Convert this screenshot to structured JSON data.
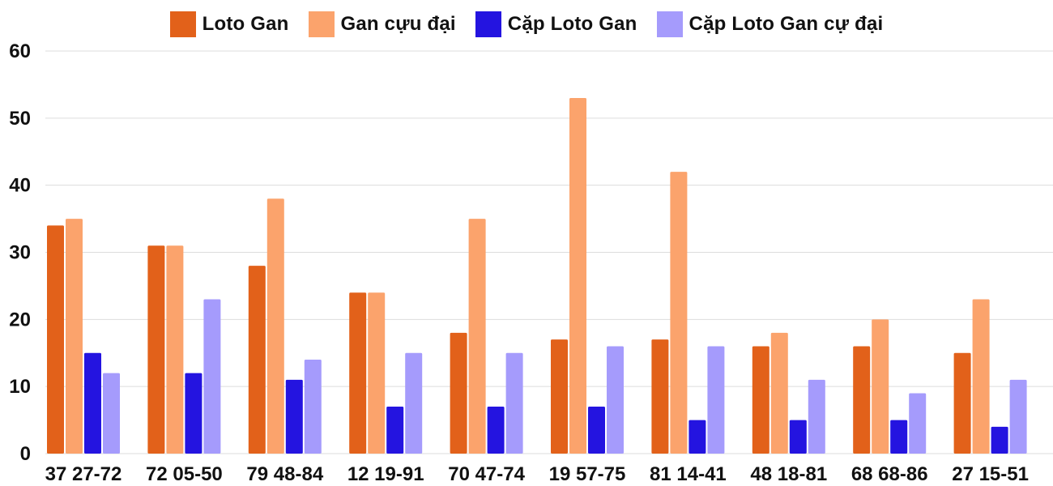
{
  "chart_data": {
    "type": "bar",
    "title": "",
    "xlabel": "",
    "ylabel": "",
    "ylim": [
      0,
      60
    ],
    "yticks": [
      0,
      10,
      20,
      30,
      40,
      50,
      60
    ],
    "grid": true,
    "legend_position": "top-center",
    "categories": [
      "37 27-72",
      "72 05-50",
      "79 48-84",
      "12 19-91",
      "70 47-74",
      "19 57-75",
      "81 14-41",
      "48 18-81",
      "68 68-86",
      "27 15-51"
    ],
    "series": [
      {
        "name": "Loto Gan",
        "color": "#e2611a",
        "values": [
          34,
          31,
          28,
          24,
          18,
          17,
          17,
          16,
          16,
          15
        ]
      },
      {
        "name": "Gan cựu đại",
        "color": "#fba36c",
        "values": [
          35,
          31,
          38,
          24,
          35,
          53,
          42,
          18,
          20,
          23
        ]
      },
      {
        "name": "Cặp Loto Gan",
        "color": "#2414e0",
        "values": [
          15,
          12,
          11,
          7,
          7,
          7,
          5,
          5,
          5,
          4
        ]
      },
      {
        "name": "Cặp Loto Gan cự đại",
        "color": "#a59bfc",
        "values": [
          12,
          23,
          14,
          15,
          15,
          16,
          16,
          11,
          9,
          11
        ]
      }
    ]
  }
}
